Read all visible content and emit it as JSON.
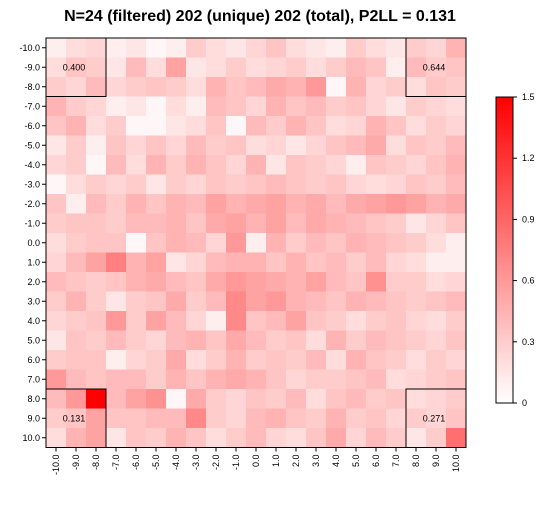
{
  "chart_data": {
    "type": "heatmap",
    "title": "N=24 (filtered) 202 (unique) 202 (total), P2LL = 0.131",
    "x_labels": [
      "-10.0",
      "-9.0",
      "-8.0",
      "-7.0",
      "-6.0",
      "-5.0",
      "-4.0",
      "-3.0",
      "-2.0",
      "-1.0",
      "0.0",
      "1.0",
      "2.0",
      "3.0",
      "4.0",
      "5.0",
      "6.0",
      "7.0",
      "8.0",
      "9.0",
      "10.0"
    ],
    "y_labels": [
      "-10.0",
      "-9.0",
      "-8.0",
      "-7.0",
      "-6.0",
      "-5.0",
      "-4.0",
      "-3.0",
      "-2.0",
      "-1.0",
      "0.0",
      "1.0",
      "2.0",
      "3.0",
      "4.0",
      "5.0",
      "6.0",
      "7.0",
      "8.0",
      "9.0",
      "10.0"
    ],
    "colorbar": {
      "min": 0,
      "max": 1.5,
      "ticks": [
        "0",
        "0.3",
        "0.6",
        "0.9",
        "1.2",
        "1.5"
      ],
      "low_color": "#ffffff",
      "high_color": "#ff0000"
    },
    "corner_annotations": {
      "top_left": "0.400",
      "top_right": "0.644",
      "bottom_left": "0.131",
      "bottom_right": "0.271"
    },
    "values": [
      [
        0.1,
        0.2,
        0.25,
        0.1,
        0.15,
        0.05,
        0.1,
        0.3,
        0.2,
        0.15,
        0.25,
        0.35,
        0.2,
        0.15,
        0.1,
        0.3,
        0.2,
        0.15,
        0.3,
        0.25,
        0.45
      ],
      [
        0.2,
        0.35,
        0.3,
        0.15,
        0.4,
        0.2,
        0.55,
        0.15,
        0.2,
        0.3,
        0.2,
        0.25,
        0.3,
        0.2,
        0.3,
        0.4,
        0.35,
        0.1,
        0.4,
        0.3,
        0.35
      ],
      [
        0.3,
        0.25,
        0.4,
        0.25,
        0.3,
        0.35,
        0.3,
        0.2,
        0.45,
        0.35,
        0.4,
        0.5,
        0.45,
        0.6,
        0.05,
        0.45,
        0.25,
        0.3,
        0.2,
        0.35,
        0.3
      ],
      [
        0.45,
        0.3,
        0.25,
        0.1,
        0.15,
        0.05,
        0.2,
        0.1,
        0.4,
        0.35,
        0.25,
        0.45,
        0.35,
        0.4,
        0.3,
        0.35,
        0.25,
        0.15,
        0.3,
        0.25,
        0.2
      ],
      [
        0.35,
        0.45,
        0.2,
        0.3,
        0.05,
        0.05,
        0.15,
        0.2,
        0.35,
        0.05,
        0.4,
        0.3,
        0.45,
        0.35,
        0.2,
        0.25,
        0.45,
        0.35,
        0.2,
        0.3,
        0.25
      ],
      [
        0.15,
        0.3,
        0.1,
        0.35,
        0.25,
        0.35,
        0.25,
        0.4,
        0.3,
        0.35,
        0.2,
        0.25,
        0.15,
        0.25,
        0.35,
        0.4,
        0.5,
        0.2,
        0.35,
        0.3,
        0.4
      ],
      [
        0.25,
        0.3,
        0.05,
        0.4,
        0.2,
        0.45,
        0.3,
        0.45,
        0.35,
        0.25,
        0.45,
        0.15,
        0.35,
        0.3,
        0.25,
        0.1,
        0.35,
        0.3,
        0.25,
        0.35,
        0.45
      ],
      [
        0.05,
        0.2,
        0.3,
        0.25,
        0.3,
        0.15,
        0.3,
        0.25,
        0.35,
        0.3,
        0.35,
        0.4,
        0.35,
        0.3,
        0.35,
        0.25,
        0.2,
        0.25,
        0.35,
        0.3,
        0.4
      ],
      [
        0.35,
        0.1,
        0.4,
        0.3,
        0.45,
        0.35,
        0.45,
        0.4,
        0.55,
        0.45,
        0.5,
        0.55,
        0.45,
        0.5,
        0.4,
        0.5,
        0.55,
        0.6,
        0.55,
        0.45,
        0.5
      ],
      [
        0.3,
        0.35,
        0.35,
        0.3,
        0.4,
        0.4,
        0.45,
        0.35,
        0.5,
        0.55,
        0.45,
        0.55,
        0.4,
        0.5,
        0.45,
        0.4,
        0.35,
        0.3,
        0.15,
        0.25,
        0.35
      ],
      [
        0.2,
        0.3,
        0.35,
        0.35,
        0.05,
        0.35,
        0.45,
        0.4,
        0.25,
        0.6,
        0.1,
        0.45,
        0.3,
        0.4,
        0.35,
        0.45,
        0.4,
        0.35,
        0.3,
        0.2,
        0.1
      ],
      [
        0.25,
        0.4,
        0.55,
        0.75,
        0.45,
        0.55,
        0.15,
        0.25,
        0.4,
        0.45,
        0.45,
        0.35,
        0.45,
        0.35,
        0.4,
        0.3,
        0.4,
        0.25,
        0.2,
        0.1,
        0.1
      ],
      [
        0.4,
        0.35,
        0.3,
        0.35,
        0.45,
        0.5,
        0.4,
        0.35,
        0.5,
        0.6,
        0.55,
        0.5,
        0.45,
        0.55,
        0.4,
        0.35,
        0.65,
        0.3,
        0.3,
        0.2,
        0.25
      ],
      [
        0.3,
        0.45,
        0.3,
        0.15,
        0.3,
        0.35,
        0.5,
        0.3,
        0.4,
        0.7,
        0.55,
        0.6,
        0.45,
        0.4,
        0.35,
        0.45,
        0.4,
        0.35,
        0.3,
        0.35,
        0.4
      ],
      [
        0.25,
        0.3,
        0.35,
        0.6,
        0.3,
        0.55,
        0.4,
        0.25,
        0.1,
        0.7,
        0.35,
        0.4,
        0.55,
        0.35,
        0.3,
        0.2,
        0.3,
        0.35,
        0.25,
        0.2,
        0.3
      ],
      [
        0.15,
        0.35,
        0.3,
        0.4,
        0.3,
        0.25,
        0.4,
        0.45,
        0.35,
        0.5,
        0.4,
        0.3,
        0.35,
        0.2,
        0.45,
        0.3,
        0.4,
        0.35,
        0.3,
        0.25,
        0.35
      ],
      [
        0.3,
        0.35,
        0.35,
        0.1,
        0.25,
        0.3,
        0.5,
        0.2,
        0.3,
        0.45,
        0.3,
        0.35,
        0.3,
        0.4,
        0.2,
        0.45,
        0.35,
        0.3,
        0.2,
        0.3,
        0.25
      ],
      [
        0.6,
        0.4,
        0.35,
        0.4,
        0.4,
        0.3,
        0.45,
        0.35,
        0.45,
        0.5,
        0.45,
        0.35,
        0.25,
        0.3,
        0.3,
        0.35,
        0.4,
        0.2,
        0.25,
        0.3,
        0.35
      ],
      [
        0.4,
        0.6,
        1.5,
        0.4,
        0.55,
        0.65,
        0.05,
        0.5,
        0.3,
        0.25,
        0.35,
        0.3,
        0.4,
        0.2,
        0.35,
        0.4,
        0.3,
        0.35,
        0.2,
        0.25,
        0.3
      ],
      [
        0.3,
        0.35,
        0.55,
        0.35,
        0.35,
        0.4,
        0.4,
        0.7,
        0.3,
        0.25,
        0.4,
        0.45,
        0.35,
        0.3,
        0.45,
        0.3,
        0.35,
        0.25,
        0.3,
        0.25,
        0.35
      ],
      [
        0.2,
        0.45,
        0.55,
        0.15,
        0.35,
        0.3,
        0.45,
        0.35,
        0.2,
        0.3,
        0.4,
        0.25,
        0.2,
        0.35,
        0.5,
        0.25,
        0.4,
        0.3,
        0.15,
        0.3,
        0.85
      ]
    ]
  }
}
